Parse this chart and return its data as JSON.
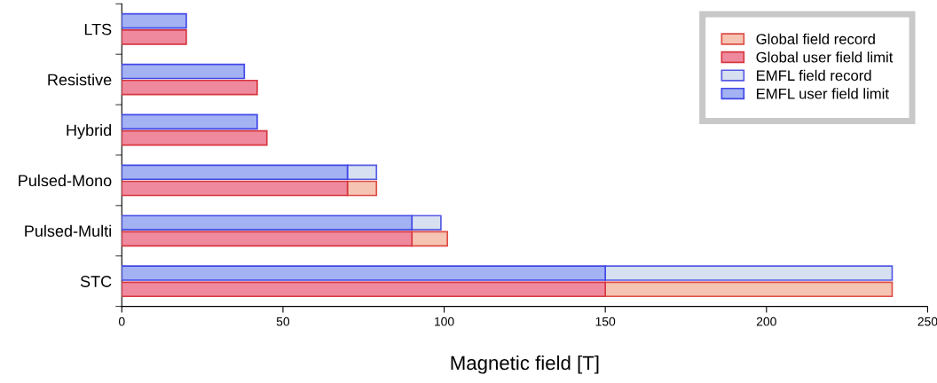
{
  "chart_data": {
    "type": "bar",
    "orientation": "horizontal",
    "xlabel": "Magnetic field [T]",
    "categories": [
      "LTS",
      "Resistive",
      "Hybrid",
      "Pulsed-Mono",
      "Pulsed-Multi",
      "STC"
    ],
    "series": [
      {
        "name": "Global field record",
        "color": "#f6c4b2",
        "values": [
          null,
          null,
          null,
          9,
          11,
          89
        ],
        "base": [
          null,
          null,
          null,
          70,
          90,
          150
        ]
      },
      {
        "name": "Global user field limit",
        "color": "#ef8a9e",
        "values": [
          20,
          42,
          45,
          70,
          90,
          150
        ]
      },
      {
        "name": "EMFL field record",
        "color": "#d6e0f0",
        "values": [
          null,
          null,
          null,
          9,
          9,
          89
        ],
        "base": [
          null,
          null,
          null,
          70,
          90,
          150
        ]
      },
      {
        "name": "EMFL user field limit",
        "color": "#a3b2f2",
        "values": [
          20,
          38,
          42,
          70,
          90,
          150
        ]
      }
    ],
    "xlim": [
      0,
      250
    ],
    "xticks": [
      0,
      50,
      100,
      150,
      200,
      250
    ],
    "legend": "top right",
    "grid": false
  }
}
